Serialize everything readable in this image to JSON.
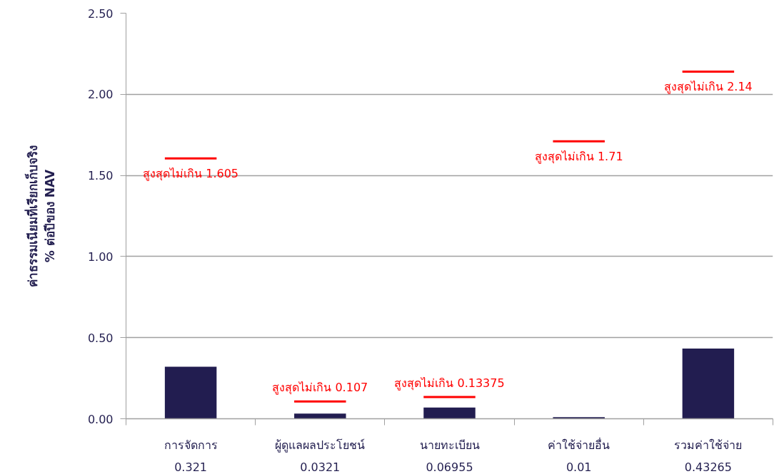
{
  "chart_data": {
    "type": "bar",
    "ylabel": "ค่าธรรมเนียมที่เรียกเก็บจริง\n% ต่อปีของ NAV",
    "categories": [
      "การจัดการ",
      "ผู้ดูแลผลประโยชน์",
      "นายทะเบียน",
      "ค่าใช้จ่ายอื่น",
      "รวมค่าใช้จ่าย"
    ],
    "series": [
      {
        "color": "#221d50",
        "values": [
          0.321,
          0.0321,
          0.06955,
          0.01,
          0.43265
        ],
        "value_labels": [
          "0.321",
          "0.0321",
          "0.06955",
          "0.01",
          "0.43265"
        ]
      }
    ],
    "ref_lines": [
      {
        "axis": "y",
        "value": 1.605,
        "label": "สูงสุดไม่เกิน 1.605",
        "color": "#ff0000"
      },
      {
        "axis": "y",
        "value": 0.107,
        "label": "สูงสุดไม่เกิน 0.107",
        "color": "#ff0000"
      },
      {
        "axis": "y",
        "value": 0.13375,
        "label": "สูงสุดไม่เกิน 0.13375",
        "color": "#ff0000"
      },
      {
        "axis": "y",
        "value": 1.71,
        "label": "สูงสุดไม่เกิน 1.71",
        "color": "#ff0000"
      },
      {
        "axis": "y",
        "value": 2.14,
        "label": "สูงสุดไม่เกิน 2.14",
        "color": "#ff0000"
      }
    ],
    "ylim": [
      0,
      2.5
    ],
    "yticks": [
      {
        "value": 0,
        "label": "0.00"
      },
      {
        "value": 0.5,
        "label": "0.50"
      },
      {
        "value": 1,
        "label": "1.00"
      },
      {
        "value": 1.5,
        "label": "1.50"
      },
      {
        "value": 2,
        "label": "2.00"
      },
      {
        "value": 2.5,
        "label": "2.50"
      }
    ],
    "grid": "y"
  }
}
